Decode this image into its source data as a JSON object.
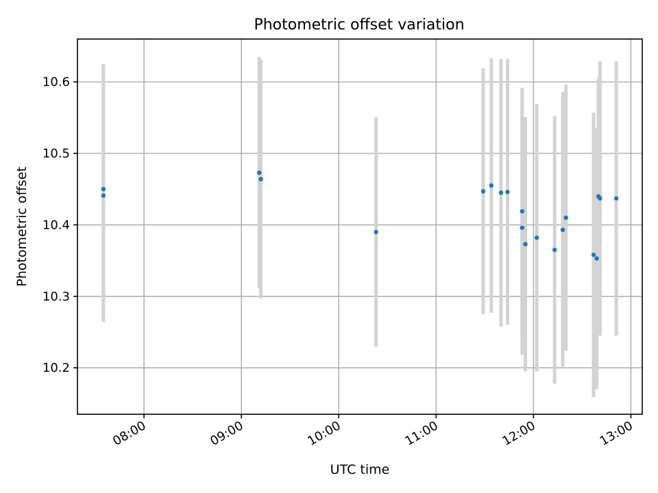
{
  "chart_data": {
    "type": "scatter",
    "title": "Photometric offset variation",
    "xlabel": "UTC time",
    "ylabel": "Photometric offset",
    "xlim": [
      "07:19",
      "13:07"
    ],
    "ylim": [
      10.135,
      10.66
    ],
    "grid": true,
    "x_ticks": [
      "08:00",
      "09:00",
      "10:00",
      "11:00",
      "12:00",
      "13:00"
    ],
    "y_ticks": [
      10.2,
      10.3,
      10.4,
      10.5,
      10.6
    ],
    "y_tick_labels": [
      "10.2",
      "10.3",
      "10.4",
      "10.5",
      "10.6"
    ],
    "point_color": "#1f77b4",
    "errorbar_color": "#d3d3d3",
    "points": [
      {
        "x": "07:35",
        "y": 10.441,
        "err": 0.177
      },
      {
        "x": "07:35",
        "y": 10.45,
        "err": 0.175
      },
      {
        "x": "09:11",
        "y": 10.473,
        "err": 0.162
      },
      {
        "x": "09:12",
        "y": 10.464,
        "err": 0.167
      },
      {
        "x": "10:23",
        "y": 10.39,
        "err": 0.161
      },
      {
        "x": "11:29",
        "y": 10.447,
        "err": 0.172
      },
      {
        "x": "11:34",
        "y": 10.455,
        "err": 0.178
      },
      {
        "x": "11:40",
        "y": 10.445,
        "err": 0.187
      },
      {
        "x": "11:44",
        "y": 10.446,
        "err": 0.186
      },
      {
        "x": "11:53",
        "y": 10.419,
        "err": 0.173
      },
      {
        "x": "11:53",
        "y": 10.396,
        "err": 0.178
      },
      {
        "x": "11:55",
        "y": 10.373,
        "err": 0.178
      },
      {
        "x": "12:02",
        "y": 10.382,
        "err": 0.187
      },
      {
        "x": "12:13",
        "y": 10.365,
        "err": 0.187
      },
      {
        "x": "12:18",
        "y": 10.393,
        "err": 0.193
      },
      {
        "x": "12:20",
        "y": 10.41,
        "err": 0.186
      },
      {
        "x": "12:37",
        "y": 10.358,
        "err": 0.199
      },
      {
        "x": "12:39",
        "y": 10.353,
        "err": 0.183
      },
      {
        "x": "12:40",
        "y": 10.44,
        "err": 0.165
      },
      {
        "x": "12:41",
        "y": 10.437,
        "err": 0.192
      },
      {
        "x": "12:51",
        "y": 10.437,
        "err": 0.192
      }
    ]
  }
}
